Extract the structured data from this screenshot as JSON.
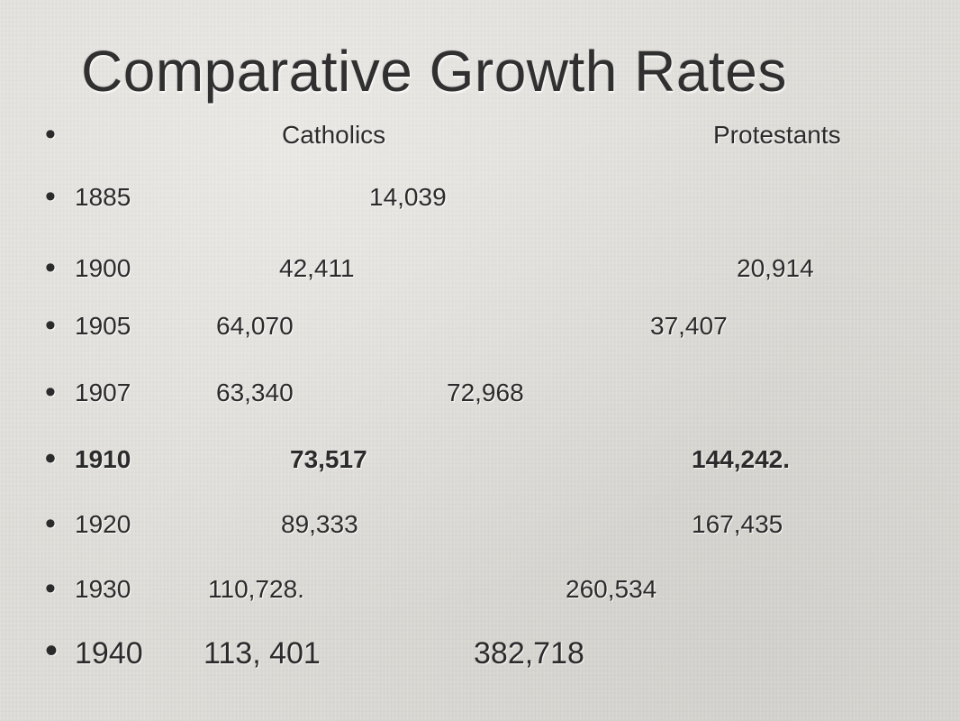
{
  "slide": {
    "title": "Comparative Growth Rates",
    "bullet_glyph": "•",
    "header": {
      "catholics": "Catholics",
      "protestants": "Protestants"
    },
    "rows": [
      {
        "year": "1885",
        "catholics": "14,039",
        "protestants": ""
      },
      {
        "year": "1900",
        "catholics": "42,411",
        "protestants": "20,914"
      },
      {
        "year": "1905",
        "catholics": "64,070",
        "protestants": "37,407"
      },
      {
        "year": "1907",
        "catholics": "63,340",
        "protestants": "72,968"
      },
      {
        "year": "1910",
        "catholics": "73,517",
        "protestants": "144,242."
      },
      {
        "year": "1920",
        "catholics": "89,333",
        "protestants": "167,435"
      },
      {
        "year": "1930",
        "catholics": "110,728.",
        "protestants": "260,534"
      },
      {
        "year": "1940",
        "catholics": "113, 401",
        "protestants": "382,718"
      }
    ]
  }
}
